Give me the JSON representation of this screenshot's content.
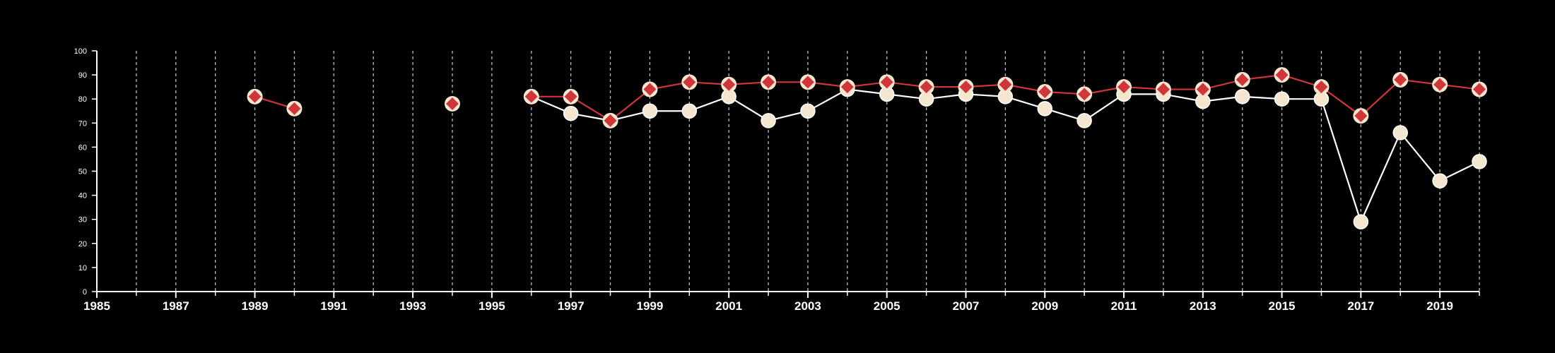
{
  "chart_data": {
    "type": "line",
    "title": "",
    "xlabel": "",
    "ylabel": "",
    "xlim": [
      1985,
      2020
    ],
    "ylim": [
      0,
      100
    ],
    "x_tick_labels": [
      1985,
      1987,
      1989,
      1991,
      1993,
      1995,
      1997,
      1999,
      2001,
      2003,
      2005,
      2007,
      2009,
      2011,
      2013,
      2015,
      2017,
      2019
    ],
    "y_tick_labels": [
      0,
      10,
      20,
      30,
      40,
      50,
      60,
      70,
      80,
      90,
      100
    ],
    "grid": "vertical dashed lines at each year",
    "legend": "none",
    "background_color": "#000000",
    "axis_color": "#ffffff",
    "x": [
      1985,
      1986,
      1987,
      1988,
      1989,
      1990,
      1991,
      1992,
      1993,
      1994,
      1995,
      1996,
      1997,
      1998,
      1999,
      2000,
      2001,
      2002,
      2003,
      2004,
      2005,
      2006,
      2007,
      2008,
      2009,
      2010,
      2011,
      2012,
      2013,
      2014,
      2015,
      2016,
      2017,
      2018,
      2019,
      2020
    ],
    "series": [
      {
        "marker": "diamond",
        "color": "#d0353a",
        "marker_outline": "#f5e6d0",
        "values": [
          null,
          null,
          null,
          null,
          81,
          76,
          null,
          null,
          null,
          78,
          null,
          81,
          81,
          71,
          84,
          87,
          86,
          87,
          87,
          85,
          87,
          85,
          85,
          86,
          83,
          82,
          85,
          84,
          84,
          88,
          90,
          85,
          73,
          88,
          86,
          84
        ]
      },
      {
        "marker": "circle",
        "color": "#f5e6d0",
        "line_color": "#ffffff",
        "values": [
          null,
          null,
          null,
          null,
          null,
          null,
          null,
          null,
          null,
          null,
          null,
          81,
          74,
          71,
          75,
          75,
          81,
          71,
          75,
          84,
          82,
          80,
          82,
          81,
          76,
          71,
          82,
          82,
          79,
          81,
          80,
          80,
          29,
          66,
          46,
          54
        ]
      }
    ]
  }
}
